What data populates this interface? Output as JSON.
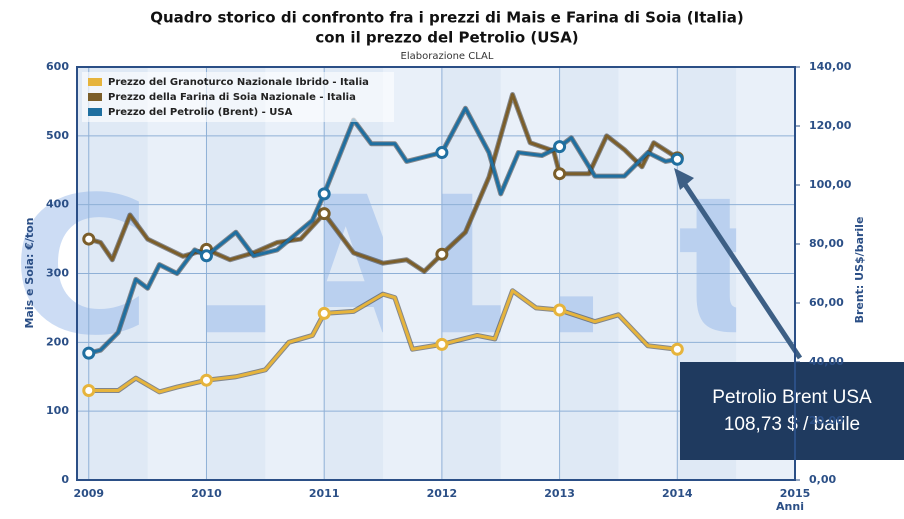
{
  "chart_data": {
    "type": "line",
    "title": [
      "Quadro storico di confronto fra i prezzi di Mais e Farina di Soia (Italia)",
      "con il prezzo del Petrolio (USA)"
    ],
    "subtitle": "Elaborazione CLAL",
    "watermark": "CLAL.it",
    "y_label": "Mais e Soia: €/ton",
    "y2_label": "Brent: US$/barile",
    "x_label": "Anni",
    "xlim": [
      2008.9,
      2015
    ],
    "xticks": [
      2009,
      2010,
      2011,
      2012,
      2013,
      2014,
      2015
    ],
    "ylim": [
      0,
      600
    ],
    "yticks": [
      0,
      100,
      200,
      300,
      400,
      500,
      600
    ],
    "y2lim": [
      0,
      140
    ],
    "y2ticks": [
      {
        "value": 0,
        "label": "0,00"
      },
      {
        "value": 20,
        "label": "20,00"
      },
      {
        "value": 40,
        "label": "40,00"
      },
      {
        "value": 60,
        "label": "60,00"
      },
      {
        "value": 80,
        "label": "80,00"
      },
      {
        "value": 100,
        "label": "100,00"
      },
      {
        "value": 120,
        "label": "120,00"
      },
      {
        "value": 140,
        "label": "140,00"
      }
    ],
    "grid": true,
    "legend": "top-left",
    "series": [
      {
        "name": "Prezzo del Granoturco Nazionale Ibrido - Italia",
        "color": "#e6b43c",
        "x": [
          2009,
          2009.25,
          2009.4,
          2009.6,
          2009.75,
          2010,
          2010.25,
          2010.5,
          2010.7,
          2010.9,
          2011,
          2011.25,
          2011.5,
          2011.6,
          2011.75,
          2012,
          2012.3,
          2012.45,
          2012.6,
          2012.8,
          2013,
          2013.3,
          2013.5,
          2013.75,
          2014
        ],
        "values": [
          130,
          130,
          148,
          128,
          135,
          145,
          150,
          160,
          200,
          210,
          242,
          245,
          270,
          265,
          190,
          197,
          210,
          205,
          275,
          250,
          247,
          230,
          240,
          195,
          190
        ]
      },
      {
        "name": "Prezzo della Farina di Soia Nazionale - Italia",
        "color": "#7b5e2a",
        "x": [
          2009,
          2009.1,
          2009.2,
          2009.35,
          2009.5,
          2009.8,
          2010,
          2010.2,
          2010.4,
          2010.6,
          2010.8,
          2011,
          2011.25,
          2011.5,
          2011.7,
          2011.85,
          2012,
          2012.2,
          2012.4,
          2012.6,
          2012.75,
          2012.95,
          2013,
          2013.25,
          2013.4,
          2013.55,
          2013.7,
          2013.8,
          2014
        ],
        "values": [
          350,
          345,
          320,
          385,
          350,
          325,
          335,
          320,
          330,
          345,
          350,
          387,
          330,
          315,
          320,
          303,
          328,
          360,
          440,
          560,
          490,
          478,
          445,
          445,
          500,
          480,
          455,
          490,
          468
        ]
      },
      {
        "name": "Prezzo del Petrolio (Brent) - USA",
        "color": "#1f6fa0",
        "axis": "y2",
        "x": [
          2009,
          2009.1,
          2009.25,
          2009.4,
          2009.5,
          2009.6,
          2009.75,
          2009.9,
          2010,
          2010.25,
          2010.4,
          2010.6,
          2010.9,
          2011,
          2011.25,
          2011.4,
          2011.6,
          2011.7,
          2011.9,
          2012,
          2012.2,
          2012.4,
          2012.5,
          2012.65,
          2012.85,
          2013,
          2013.1,
          2013.3,
          2013.55,
          2013.75,
          2013.9,
          2014
        ],
        "values": [
          43,
          44,
          50,
          68,
          65,
          73,
          70,
          78,
          76,
          84,
          76,
          78,
          88,
          97,
          122,
          114,
          114,
          108,
          110,
          111,
          126,
          111,
          97,
          111,
          110,
          113,
          116,
          103,
          103,
          111,
          108,
          108.73
        ]
      }
    ],
    "annotations": [
      {
        "x": 2014,
        "y": 108.73,
        "axis": "y2",
        "lines": [
          "Petrolio Brent USA",
          "108,73 $ / barile"
        ]
      }
    ]
  }
}
